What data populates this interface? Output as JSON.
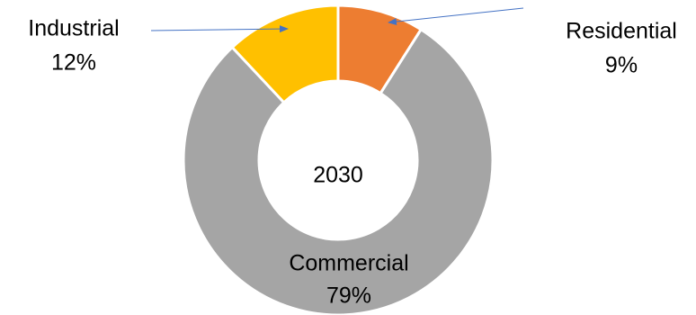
{
  "chart_data": {
    "type": "pie",
    "variant": "donut",
    "center_label": "2030",
    "slices": [
      {
        "label": "Residential",
        "value": 9,
        "value_label": "9%",
        "color": "#ED7D31"
      },
      {
        "label": "Commercial",
        "value": 79,
        "value_label": "79%",
        "color": "#A5A5A5"
      },
      {
        "label": "Industrial",
        "value": 12,
        "value_label": "12%",
        "color": "#FFC000"
      }
    ],
    "slice_border_color": "#FFFFFF",
    "arrow_color": "#4472C4",
    "legend": "none"
  }
}
